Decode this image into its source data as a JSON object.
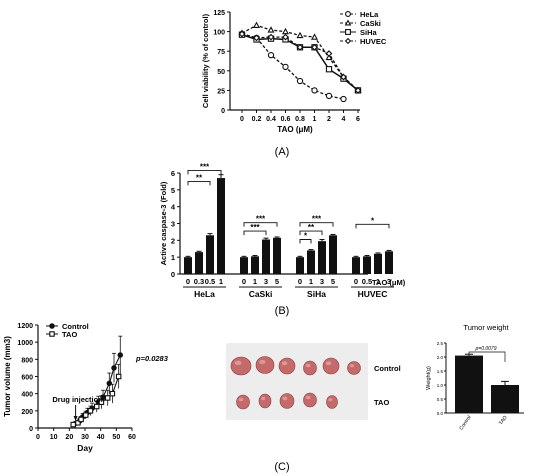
{
  "panel_labels": [
    "(A)",
    "(B)",
    "(C)"
  ],
  "chart_data": [
    {
      "type": "line",
      "panel": "A",
      "xlabel": "TAO (μM)",
      "ylabel": "Cell viability (% of control)",
      "x_categories": [
        "0",
        "0.2",
        "0.4",
        "0.6",
        "0.8",
        "1",
        "2",
        "4",
        "6"
      ],
      "ylim": [
        0,
        125
      ],
      "yticks": [
        "0",
        "25",
        "50",
        "75",
        "100",
        "125"
      ],
      "legend_position": "top-right",
      "series": [
        {
          "name": "HeLa",
          "marker": "circle-open",
          "dashed": true,
          "x_index": [
            0,
            1,
            2,
            3,
            4,
            5,
            6,
            7
          ],
          "values": [
            97,
            92,
            70,
            55,
            37,
            25,
            18,
            14
          ]
        },
        {
          "name": "CaSki",
          "marker": "triangle-open",
          "dashed": true,
          "x_index": [
            0,
            1,
            2,
            3,
            4,
            5,
            6,
            7,
            8
          ],
          "values": [
            98,
            108,
            102,
            100,
            95,
            93,
            67,
            42,
            25
          ]
        },
        {
          "name": "SiHa",
          "marker": "square-open",
          "dashed": false,
          "x_index": [
            0,
            1,
            2,
            3,
            4,
            5,
            6,
            7,
            8
          ],
          "values": [
            96,
            90,
            91,
            90,
            80,
            80,
            52,
            40,
            25
          ]
        },
        {
          "name": "HUVEC",
          "marker": "diamond-open",
          "dashed": true,
          "x_index": [
            0,
            1,
            2,
            3,
            4,
            5,
            6,
            7,
            8
          ],
          "values": [
            97,
            92,
            93,
            93,
            80,
            80,
            72,
            42,
            25
          ]
        }
      ]
    },
    {
      "type": "bar",
      "panel": "B",
      "ylabel": "Active caspase-3 (Fold)",
      "ylim": [
        0,
        6
      ],
      "yticks": [
        "0",
        "1",
        "2",
        "3",
        "4",
        "5",
        "6"
      ],
      "unit_label": "TAO (μM)",
      "groups": [
        {
          "name": "HeLa",
          "doses": [
            "0",
            "0.3",
            "0.5",
            "1"
          ],
          "values": [
            1.0,
            1.3,
            2.3,
            5.7
          ],
          "errors": [
            0.05,
            0.05,
            0.1,
            0.2
          ]
        },
        {
          "name": "CaSki",
          "doses": [
            "0",
            "1",
            "3",
            "5"
          ],
          "values": [
            1.0,
            1.05,
            2.05,
            2.15
          ],
          "errors": [
            0.05,
            0.05,
            0.08,
            0.05
          ]
        },
        {
          "name": "SiHa",
          "doses": [
            "0",
            "1",
            "3",
            "5"
          ],
          "values": [
            1.0,
            1.4,
            1.95,
            2.3
          ],
          "errors": [
            0.05,
            0.05,
            0.1,
            0.05
          ]
        },
        {
          "name": "HUVEC",
          "doses": [
            "0",
            "0.5",
            "1",
            "3"
          ],
          "values": [
            1.0,
            1.05,
            1.2,
            1.35
          ],
          "errors": [
            0.05,
            0.05,
            0.05,
            0.05
          ]
        }
      ],
      "significance": [
        {
          "group": 0,
          "from": 0,
          "to": 3,
          "label": "***",
          "y": 6.15
        },
        {
          "group": 0,
          "from": 0,
          "to": 2,
          "label": "**",
          "y": 5.5
        },
        {
          "group": 1,
          "from": 0,
          "to": 3,
          "label": "***",
          "y": 3.05
        },
        {
          "group": 1,
          "from": 0,
          "to": 2,
          "label": "***",
          "y": 2.55
        },
        {
          "group": 2,
          "from": 0,
          "to": 3,
          "label": "***",
          "y": 3.05
        },
        {
          "group": 2,
          "from": 0,
          "to": 2,
          "label": "**",
          "y": 2.55
        },
        {
          "group": 2,
          "from": 0,
          "to": 1,
          "label": "*",
          "y": 2.05
        },
        {
          "group": 3,
          "from": 0,
          "to": 3,
          "label": "*",
          "y": 2.95
        }
      ]
    },
    {
      "type": "line",
      "panel": "C-left",
      "xlabel": "Day",
      "ylabel": "Tumor volume (mm3)",
      "xlim": [
        0,
        60
      ],
      "xticks": [
        "0",
        "10",
        "20",
        "30",
        "40",
        "50",
        "60"
      ],
      "ylim": [
        0,
        1200
      ],
      "yticks": [
        "0",
        "200",
        "400",
        "600",
        "800",
        "1000",
        "1200"
      ],
      "annotation": "Drug injection",
      "annotation_x": 24,
      "pvalue_label": "p=0.0283",
      "series": [
        {
          "name": "Control",
          "marker": "circle-filled",
          "x": [
            23,
            26,
            28,
            31,
            34,
            38,
            41,
            45,
            48,
            52
          ],
          "values": [
            50,
            80,
            130,
            180,
            230,
            300,
            360,
            520,
            700,
            850
          ],
          "errors": [
            20,
            30,
            40,
            50,
            60,
            70,
            80,
            120,
            170,
            220
          ]
        },
        {
          "name": "TAO",
          "marker": "square-open",
          "x": [
            23,
            26,
            28,
            31,
            34,
            38,
            41,
            45,
            48,
            52
          ],
          "values": [
            40,
            60,
            100,
            150,
            200,
            250,
            300,
            350,
            400,
            600
          ],
          "errors": [
            15,
            25,
            35,
            45,
            55,
            65,
            75,
            90,
            110,
            140
          ]
        }
      ]
    },
    {
      "type": "bar",
      "panel": "C-right",
      "title": "Tumor weight",
      "ylabel": "Weight(g)",
      "categories": [
        "Control",
        "TAO"
      ],
      "values": [
        2.05,
        1.0
      ],
      "errors": [
        0.05,
        0.13
      ],
      "ylim": [
        0,
        2.5
      ],
      "yticks": [
        "0.0",
        "0.5",
        "1.0",
        "1.5",
        "2.0",
        "2.5"
      ],
      "pvalue_label": "p=0.0079"
    }
  ],
  "photo": {
    "row_labels": [
      "Control",
      "TAO"
    ],
    "tumor_color": "#c46a6a"
  }
}
